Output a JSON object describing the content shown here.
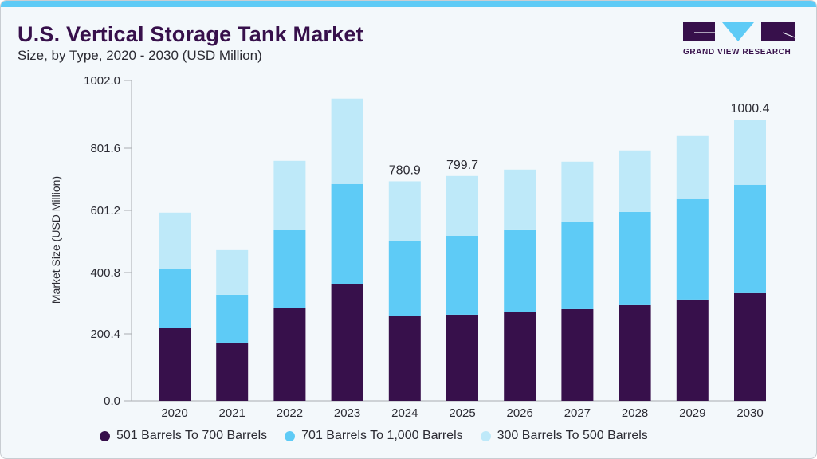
{
  "header": {
    "title": "U.S. Vertical Storage Tank Market",
    "subtitle": "Size, by Type, 2020 - 2030 (USD Million)"
  },
  "brand": {
    "logo_text": "GRAND VIEW RESEARCH",
    "colors": {
      "dark": "#37104b",
      "accent": "#5ecbf6",
      "topbar": "#5ecbf6"
    }
  },
  "chart_data": {
    "type": "bar",
    "stacked": true,
    "title": "U.S. Vertical Storage Tank Market",
    "subtitle": "Size, by Type, 2020 - 2030 (USD Million)",
    "xlabel": "",
    "ylabel": "Market Size (USD Million)",
    "ylim": [
      0,
      1002.0
    ],
    "yticks": [
      "0.0",
      "200.4",
      "400.8",
      "601.2",
      "801.6",
      "1002.0"
    ],
    "grid": false,
    "legend_position": "bottom",
    "categories": [
      "2020",
      "2021",
      "2022",
      "2023",
      "2024",
      "2025",
      "2026",
      "2027",
      "2028",
      "2029",
      "2030"
    ],
    "data_notes": "Only the labels for 2024 (780.9), 2025 (799.7) and 2030 (1000.4) are printed on the chart. All other bar totals and every per-series segment value are inferred estimates: measured bar pixel heights rescaled so the three labeled bars match their labels. This rescaling does not agree with the chart's own y-axis ticks. Read against the tick positions, the bars are roughly 13-14% lower than these values, and the inferred 2023 total (~1075) exceeds the 1002.0 top tick even though that bar is drawn inside the plot. Treat 'series' values as approximate and low-confidence.",
    "series": [
      {
        "name": "501 Barrels To 700 Barrels",
        "color": "#37104b",
        "values_are": "inferred",
        "values": [
          258.1,
          207.0,
          329.0,
          414.1,
          300.6,
          306.3,
          314.8,
          326.1,
          340.3,
          360.2,
          382.9
        ]
      },
      {
        "name": "701 Barrels To 1,000 Barrels",
        "color": "#5ecbf6",
        "values_are": "inferred",
        "values": [
          209.9,
          170.2,
          277.9,
          357.3,
          266.6,
          280.8,
          294.9,
          312.0,
          331.8,
          357.3,
          385.7
        ]
      },
      {
        "name": "300 Barrels To 500 Barrels",
        "color": "#bee9f9",
        "values_are": "inferred",
        "values": [
          201.4,
          158.8,
          246.7,
          303.5,
          213.7,
          212.6,
          212.7,
          212.7,
          218.4,
          224.0,
          231.8
        ]
      }
    ],
    "data_labels": [
      {
        "category": "2024",
        "text": "780.9",
        "source": "printed on chart"
      },
      {
        "category": "2025",
        "text": "799.7",
        "source": "printed on chart"
      },
      {
        "category": "2030",
        "text": "1000.4",
        "source": "printed on chart"
      }
    ]
  }
}
